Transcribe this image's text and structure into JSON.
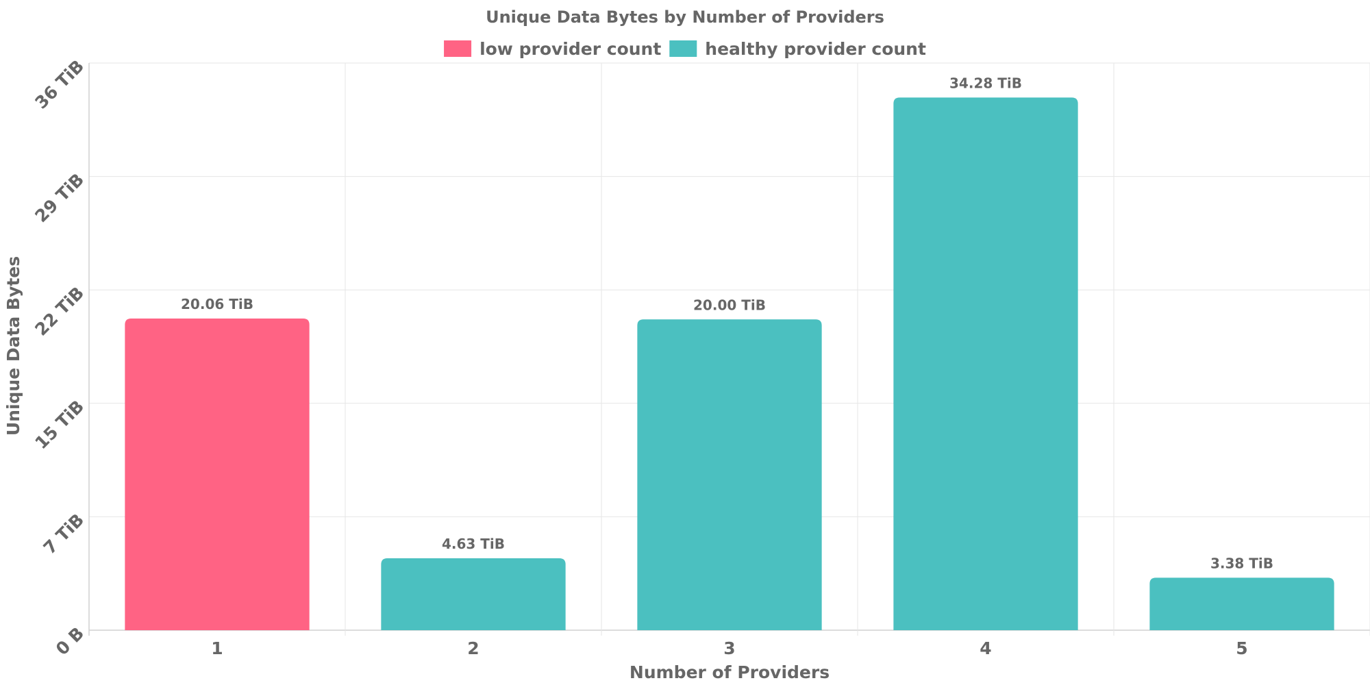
{
  "chart_data": {
    "type": "bar",
    "title": "Unique Data Bytes by Number of Providers",
    "xlabel": "Number of Providers",
    "ylabel": "Unique Data Bytes",
    "categories": [
      "1",
      "2",
      "3",
      "4",
      "5"
    ],
    "values_tib": [
      20.06,
      4.63,
      20.0,
      34.28,
      3.38
    ],
    "data_labels": [
      "20.06 TiB",
      "4.63 TiB",
      "20.00 TiB",
      "34.28 TiB",
      "3.38 TiB"
    ],
    "bar_series": [
      "low provider count",
      "healthy provider count",
      "healthy provider count",
      "healthy provider count",
      "healthy provider count"
    ],
    "legend": [
      {
        "name": "low provider count",
        "color": "#ff6384"
      },
      {
        "name": "healthy provider count",
        "color": "#4bc0c0"
      }
    ],
    "legend_position": "top-center",
    "y_ticks": [
      {
        "value": 0,
        "label": "0 B"
      },
      {
        "value": 7.3,
        "label": "7 TiB"
      },
      {
        "value": 14.6,
        "label": "15 TiB"
      },
      {
        "value": 21.9,
        "label": "22 TiB"
      },
      {
        "value": 29.2,
        "label": "29 TiB"
      },
      {
        "value": 36.5,
        "label": "36 TiB"
      }
    ],
    "ylim": [
      0,
      36.5
    ],
    "grid": true
  }
}
